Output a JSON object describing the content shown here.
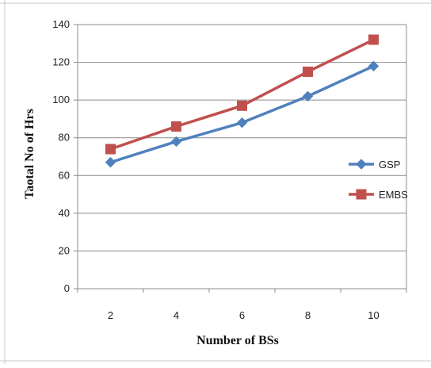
{
  "chart_data": {
    "type": "line",
    "x": [
      2,
      4,
      6,
      8,
      10
    ],
    "xlabel": "Number of BSs",
    "ylabel": "Taotal No of Hrs",
    "ylim": [
      0,
      140
    ],
    "yticks": [
      0,
      20,
      40,
      60,
      80,
      100,
      120,
      140
    ],
    "grid": true,
    "legend_position": "right",
    "series": [
      {
        "name": "GSP",
        "values": [
          67,
          78,
          88,
          102,
          118
        ],
        "color": "#4f81bd",
        "marker": "diamond"
      },
      {
        "name": "EMBS",
        "values": [
          74,
          86,
          97,
          115,
          132
        ],
        "color": "#c0504d",
        "marker": "square"
      }
    ]
  }
}
